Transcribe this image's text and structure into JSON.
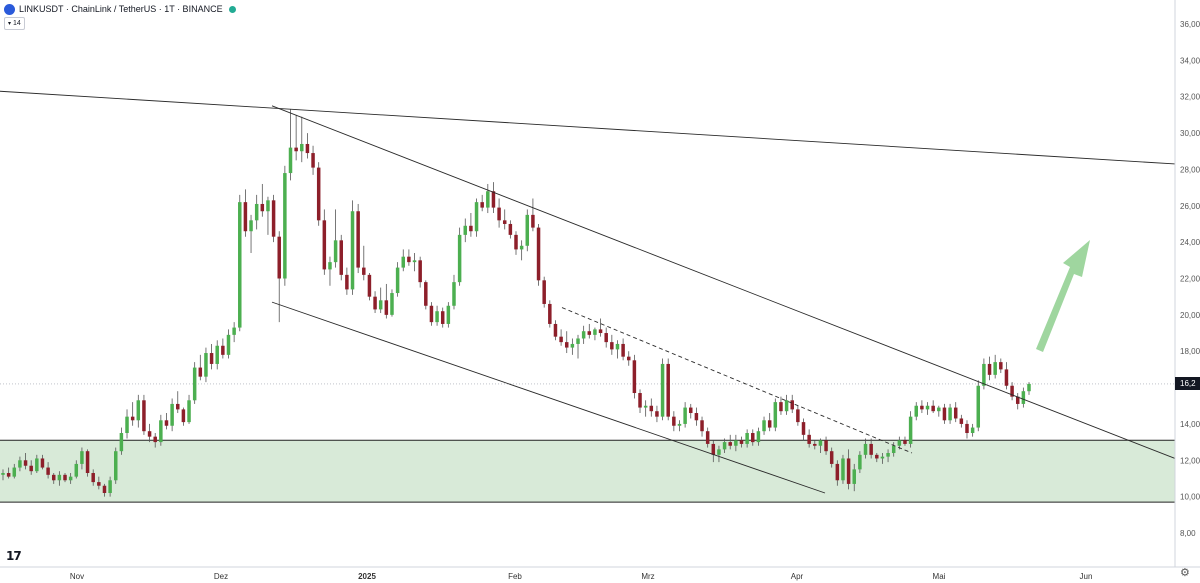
{
  "header": {
    "title": "LINKUSDT · ChainLink / TetherUS · 1T · BINANCE",
    "indicator_badge": "14"
  },
  "price_tag": "16,2",
  "chart_data": {
    "type": "candlestick",
    "y_ticks": [
      "36,00",
      "34,00",
      "32,00",
      "30,00",
      "28,00",
      "26,00",
      "24,00",
      "22,00",
      "20,00",
      "18,00",
      "16,00",
      "14,00",
      "12,00",
      "10,00",
      "8,00"
    ],
    "x_ticks": [
      "Nov",
      "Dez",
      "2025",
      "Feb",
      "Mrz",
      "Apr",
      "Mai",
      "Jun"
    ],
    "ylim": [
      7,
      36.5
    ],
    "colors": {
      "up": "#4caf50",
      "down": "#8d1f2a",
      "zone": "#d8ead8",
      "arrow": "#9fd69f"
    },
    "support_zone": [
      9.7,
      13.1
    ],
    "last_price": 16.2,
    "candles": [
      [
        11.2,
        11.5,
        10.9,
        11.3
      ],
      [
        11.3,
        11.6,
        11.0,
        11.1
      ],
      [
        11.1,
        11.8,
        11.0,
        11.6
      ],
      [
        11.6,
        12.2,
        11.4,
        12.0
      ],
      [
        12.0,
        12.4,
        11.5,
        11.7
      ],
      [
        11.7,
        12.0,
        11.2,
        11.4
      ],
      [
        11.4,
        12.3,
        11.3,
        12.1
      ],
      [
        12.1,
        12.3,
        11.5,
        11.6
      ],
      [
        11.6,
        11.9,
        11.0,
        11.2
      ],
      [
        11.2,
        11.3,
        10.7,
        10.9
      ],
      [
        10.9,
        11.4,
        10.6,
        11.2
      ],
      [
        11.2,
        11.3,
        10.8,
        10.9
      ],
      [
        10.9,
        11.3,
        10.7,
        11.1
      ],
      [
        11.1,
        12.0,
        11.0,
        11.8
      ],
      [
        11.8,
        12.7,
        11.5,
        12.5
      ],
      [
        12.5,
        12.6,
        11.1,
        11.3
      ],
      [
        11.3,
        11.5,
        10.6,
        10.8
      ],
      [
        10.8,
        11.1,
        10.4,
        10.6
      ],
      [
        10.6,
        10.7,
        10.0,
        10.2
      ],
      [
        10.2,
        11.1,
        10.0,
        10.9
      ],
      [
        10.9,
        12.7,
        10.7,
        12.5
      ],
      [
        12.5,
        13.8,
        12.3,
        13.5
      ],
      [
        13.5,
        14.8,
        13.2,
        14.4
      ],
      [
        14.4,
        15.2,
        13.9,
        14.2
      ],
      [
        14.2,
        15.6,
        13.8,
        15.3
      ],
      [
        15.3,
        15.6,
        13.4,
        13.6
      ],
      [
        13.6,
        14.0,
        13.0,
        13.3
      ],
      [
        13.3,
        13.5,
        12.7,
        13.0
      ],
      [
        13.0,
        14.5,
        12.8,
        14.2
      ],
      [
        14.2,
        14.6,
        13.7,
        13.9
      ],
      [
        13.9,
        15.4,
        13.6,
        15.1
      ],
      [
        15.1,
        15.8,
        14.6,
        14.8
      ],
      [
        14.8,
        14.9,
        13.9,
        14.1
      ],
      [
        14.1,
        15.6,
        14.0,
        15.3
      ],
      [
        15.3,
        17.4,
        15.1,
        17.1
      ],
      [
        17.1,
        17.8,
        16.4,
        16.6
      ],
      [
        16.6,
        18.2,
        16.3,
        17.9
      ],
      [
        17.9,
        18.4,
        17.0,
        17.3
      ],
      [
        17.3,
        18.6,
        17.0,
        18.3
      ],
      [
        18.3,
        18.7,
        17.6,
        17.8
      ],
      [
        17.8,
        19.2,
        17.6,
        18.9
      ],
      [
        18.9,
        19.6,
        18.5,
        19.3
      ],
      [
        19.3,
        26.6,
        19.1,
        26.2
      ],
      [
        26.2,
        26.9,
        24.3,
        24.6
      ],
      [
        24.6,
        25.5,
        23.4,
        25.2
      ],
      [
        25.2,
        26.6,
        24.7,
        26.1
      ],
      [
        26.1,
        27.2,
        25.4,
        25.7
      ],
      [
        25.7,
        26.5,
        24.4,
        26.3
      ],
      [
        26.3,
        26.6,
        24.0,
        24.3
      ],
      [
        24.3,
        24.6,
        19.6,
        22.0
      ],
      [
        22.0,
        28.2,
        21.6,
        27.8
      ],
      [
        27.8,
        31.3,
        27.4,
        29.2
      ],
      [
        29.2,
        31.0,
        28.5,
        29.0
      ],
      [
        29.0,
        30.9,
        28.4,
        29.4
      ],
      [
        29.4,
        30.0,
        28.6,
        28.9
      ],
      [
        28.9,
        29.3,
        27.7,
        28.1
      ],
      [
        28.1,
        28.4,
        24.9,
        25.2
      ],
      [
        25.2,
        25.8,
        22.2,
        22.5
      ],
      [
        22.5,
        23.2,
        21.6,
        22.9
      ],
      [
        22.9,
        25.8,
        22.6,
        24.1
      ],
      [
        24.1,
        24.4,
        21.9,
        22.2
      ],
      [
        22.2,
        22.6,
        21.1,
        21.4
      ],
      [
        21.4,
        26.3,
        21.1,
        25.7
      ],
      [
        25.7,
        26.1,
        22.3,
        22.6
      ],
      [
        22.6,
        23.8,
        21.9,
        22.2
      ],
      [
        22.2,
        22.3,
        20.8,
        21.0
      ],
      [
        21.0,
        21.3,
        20.1,
        20.3
      ],
      [
        20.3,
        21.5,
        20.1,
        20.8
      ],
      [
        20.8,
        21.7,
        19.8,
        20.0
      ],
      [
        20.0,
        21.4,
        19.9,
        21.2
      ],
      [
        21.2,
        22.9,
        21.0,
        22.6
      ],
      [
        22.6,
        23.6,
        22.4,
        23.2
      ],
      [
        23.2,
        23.6,
        22.7,
        22.9
      ],
      [
        22.9,
        23.4,
        22.4,
        23.0
      ],
      [
        23.0,
        23.2,
        21.5,
        21.8
      ],
      [
        21.8,
        21.9,
        20.3,
        20.5
      ],
      [
        20.5,
        20.7,
        19.4,
        19.6
      ],
      [
        19.6,
        20.5,
        19.4,
        20.2
      ],
      [
        20.2,
        20.4,
        19.3,
        19.5
      ],
      [
        19.5,
        20.7,
        19.3,
        20.5
      ],
      [
        20.5,
        22.2,
        20.3,
        21.8
      ],
      [
        21.8,
        24.8,
        21.6,
        24.4
      ],
      [
        24.4,
        25.3,
        24.0,
        24.9
      ],
      [
        24.9,
        25.6,
        24.3,
        24.6
      ],
      [
        24.6,
        26.4,
        24.3,
        26.2
      ],
      [
        26.2,
        26.6,
        25.7,
        25.9
      ],
      [
        25.9,
        27.2,
        25.6,
        26.8
      ],
      [
        26.8,
        27.3,
        25.6,
        25.9
      ],
      [
        25.9,
        26.4,
        24.8,
        25.2
      ],
      [
        25.2,
        25.8,
        24.7,
        25.0
      ],
      [
        25.0,
        25.2,
        24.2,
        24.4
      ],
      [
        24.4,
        24.6,
        23.3,
        23.6
      ],
      [
        23.6,
        24.1,
        23.0,
        23.8
      ],
      [
        23.8,
        25.8,
        23.5,
        25.5
      ],
      [
        25.5,
        26.4,
        24.6,
        24.8
      ],
      [
        24.8,
        25.0,
        21.6,
        21.9
      ],
      [
        21.9,
        22.1,
        20.4,
        20.6
      ],
      [
        20.6,
        20.8,
        19.3,
        19.5
      ],
      [
        19.5,
        19.7,
        18.6,
        18.8
      ],
      [
        18.8,
        19.2,
        18.3,
        18.5
      ],
      [
        18.5,
        19.1,
        17.9,
        18.2
      ],
      [
        18.2,
        18.7,
        17.8,
        18.4
      ],
      [
        18.4,
        18.9,
        17.6,
        18.7
      ],
      [
        18.7,
        19.4,
        18.4,
        19.1
      ],
      [
        19.1,
        19.5,
        18.7,
        18.9
      ],
      [
        18.9,
        19.3,
        18.6,
        19.2
      ],
      [
        19.2,
        19.8,
        18.8,
        19.0
      ],
      [
        19.0,
        19.3,
        18.2,
        18.5
      ],
      [
        18.5,
        18.9,
        17.8,
        18.1
      ],
      [
        18.1,
        18.6,
        17.6,
        18.4
      ],
      [
        18.4,
        18.7,
        17.5,
        17.7
      ],
      [
        17.7,
        18.0,
        17.2,
        17.5
      ],
      [
        17.5,
        17.8,
        15.4,
        15.7
      ],
      [
        15.7,
        15.9,
        14.6,
        14.9
      ],
      [
        14.9,
        15.3,
        14.4,
        15.0
      ],
      [
        15.0,
        15.4,
        14.4,
        14.7
      ],
      [
        14.7,
        15.0,
        14.1,
        14.4
      ],
      [
        14.4,
        17.6,
        14.2,
        17.3
      ],
      [
        17.3,
        17.6,
        14.2,
        14.4
      ],
      [
        14.4,
        14.7,
        13.6,
        13.9
      ],
      [
        13.9,
        14.2,
        13.6,
        14.0
      ],
      [
        14.0,
        15.2,
        13.8,
        14.9
      ],
      [
        14.9,
        15.1,
        14.3,
        14.6
      ],
      [
        14.6,
        14.9,
        13.9,
        14.2
      ],
      [
        14.2,
        14.4,
        13.3,
        13.6
      ],
      [
        13.6,
        13.8,
        12.7,
        12.9
      ],
      [
        12.9,
        13.1,
        11.9,
        12.3
      ],
      [
        12.3,
        12.8,
        11.9,
        12.6
      ],
      [
        12.6,
        13.2,
        12.4,
        13.0
      ],
      [
        13.0,
        13.4,
        12.6,
        12.8
      ],
      [
        12.8,
        13.4,
        12.5,
        13.1
      ],
      [
        13.1,
        13.3,
        12.7,
        12.9
      ],
      [
        12.9,
        13.7,
        12.7,
        13.5
      ],
      [
        13.5,
        13.7,
        12.8,
        13.0
      ],
      [
        13.0,
        13.8,
        12.8,
        13.6
      ],
      [
        13.6,
        14.4,
        13.4,
        14.2
      ],
      [
        14.2,
        14.6,
        13.6,
        13.8
      ],
      [
        13.8,
        15.4,
        13.6,
        15.2
      ],
      [
        15.2,
        15.5,
        14.5,
        14.7
      ],
      [
        14.7,
        15.6,
        14.5,
        15.3
      ],
      [
        15.3,
        15.6,
        14.6,
        14.8
      ],
      [
        14.8,
        15.0,
        13.9,
        14.1
      ],
      [
        14.1,
        14.3,
        13.1,
        13.4
      ],
      [
        13.4,
        13.7,
        12.7,
        12.9
      ],
      [
        12.9,
        13.1,
        12.6,
        12.8
      ],
      [
        12.8,
        13.2,
        12.4,
        13.1
      ],
      [
        13.1,
        13.3,
        12.3,
        12.5
      ],
      [
        12.5,
        12.7,
        11.6,
        11.8
      ],
      [
        11.8,
        12.0,
        10.6,
        10.9
      ],
      [
        10.9,
        12.3,
        10.7,
        12.1
      ],
      [
        12.1,
        12.6,
        10.4,
        10.7
      ],
      [
        10.7,
        11.8,
        10.3,
        11.5
      ],
      [
        11.5,
        12.5,
        11.3,
        12.3
      ],
      [
        12.3,
        13.2,
        12.1,
        12.9
      ],
      [
        12.9,
        13.2,
        12.1,
        12.3
      ],
      [
        12.3,
        12.4,
        11.9,
        12.1
      ],
      [
        12.1,
        12.4,
        11.8,
        12.2
      ],
      [
        12.2,
        12.6,
        11.9,
        12.4
      ],
      [
        12.4,
        13.0,
        12.2,
        12.8
      ],
      [
        12.8,
        13.3,
        12.6,
        13.1
      ],
      [
        13.1,
        13.3,
        12.8,
        12.9
      ],
      [
        12.9,
        14.7,
        12.7,
        14.4
      ],
      [
        14.4,
        15.2,
        14.2,
        15.0
      ],
      [
        15.0,
        15.3,
        14.6,
        14.8
      ],
      [
        14.8,
        15.2,
        14.5,
        15.0
      ],
      [
        15.0,
        15.3,
        14.6,
        14.7
      ],
      [
        14.7,
        15.0,
        14.4,
        14.9
      ],
      [
        14.9,
        15.1,
        14.0,
        14.2
      ],
      [
        14.2,
        15.1,
        14.0,
        14.9
      ],
      [
        14.9,
        15.2,
        14.1,
        14.3
      ],
      [
        14.3,
        14.5,
        13.8,
        14.0
      ],
      [
        14.0,
        14.2,
        13.2,
        13.5
      ],
      [
        13.5,
        14.0,
        13.3,
        13.8
      ],
      [
        13.8,
        16.4,
        13.6,
        16.1
      ],
      [
        16.1,
        17.6,
        15.9,
        17.3
      ],
      [
        17.3,
        17.7,
        16.4,
        16.7
      ],
      [
        16.7,
        17.8,
        16.5,
        17.4
      ],
      [
        17.4,
        17.6,
        16.8,
        17.0
      ],
      [
        17.0,
        17.4,
        15.9,
        16.1
      ],
      [
        16.1,
        16.3,
        15.3,
        15.5
      ],
      [
        15.5,
        15.7,
        14.8,
        15.1
      ],
      [
        15.1,
        16.0,
        14.9,
        15.8
      ],
      [
        15.8,
        16.3,
        15.6,
        16.2
      ]
    ],
    "lines": [
      {
        "kind": "solid",
        "points": [
          [
            0,
            32.3
          ],
          [
            1175,
            28.3
          ]
        ]
      },
      {
        "kind": "solid",
        "points": [
          [
            272,
            31.5
          ],
          [
            1175,
            12.1
          ]
        ]
      },
      {
        "kind": "solid",
        "points": [
          [
            272,
            20.7
          ],
          [
            825,
            10.2
          ]
        ]
      },
      {
        "kind": "dashed",
        "points": [
          [
            562,
            20.4
          ],
          [
            912,
            12.4
          ]
        ]
      }
    ]
  }
}
